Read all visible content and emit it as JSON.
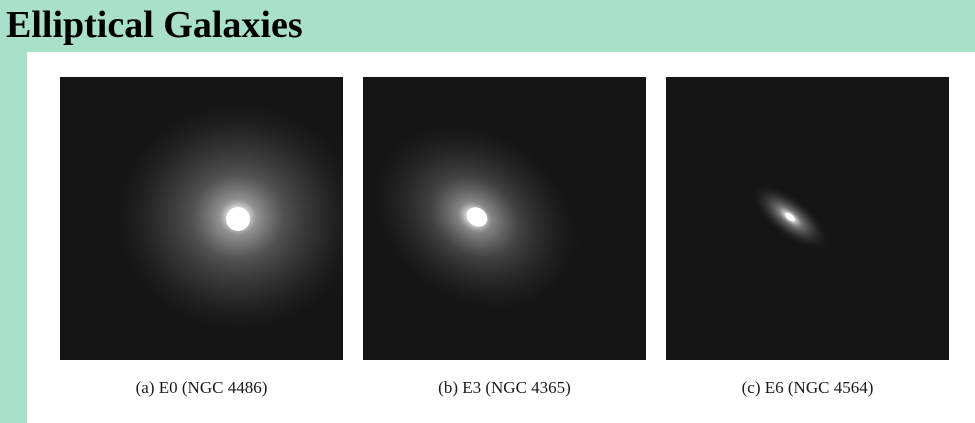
{
  "slide": {
    "title": "Elliptical Galaxies"
  },
  "colors": {
    "accent_band": "#a8e0ca",
    "photo_background": "#151515"
  },
  "figure": {
    "panels": [
      {
        "caption": "(a) E0 (NGC 4486)",
        "image": "galaxy-e0-photo"
      },
      {
        "caption": "(b) E3 (NGC 4365)",
        "image": "galaxy-e3-photo"
      },
      {
        "caption": "(c) E6 (NGC 4564)",
        "image": "galaxy-e6-photo"
      }
    ]
  }
}
